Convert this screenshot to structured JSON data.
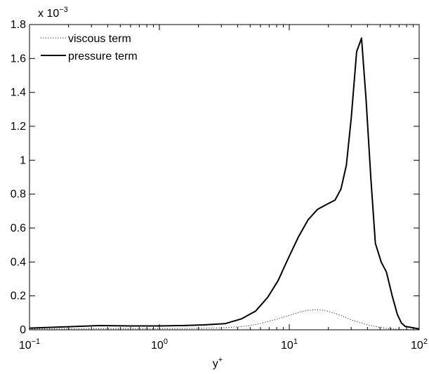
{
  "chart_data": {
    "type": "line",
    "title": "",
    "xlabel": "y",
    "xlabel_superscript": "+",
    "ylabel": "",
    "x_scale": "log",
    "xlim": [
      0.1,
      100
    ],
    "ylim": [
      0,
      0.0018
    ],
    "y_multiplier_label": {
      "base": "x 10",
      "exponent": "−3"
    },
    "x_ticks": [
      {
        "value": 0.1,
        "base": "10",
        "exp": "−1"
      },
      {
        "value": 1,
        "base": "10",
        "exp": "0"
      },
      {
        "value": 10,
        "base": "10",
        "exp": "1"
      },
      {
        "value": 100,
        "base": "10",
        "exp": "2"
      }
    ],
    "y_ticks": [
      {
        "value": 0,
        "label": "0"
      },
      {
        "value": 0.0002,
        "label": "0.2"
      },
      {
        "value": 0.0004,
        "label": "0.4"
      },
      {
        "value": 0.0006,
        "label": "0.6"
      },
      {
        "value": 0.0008,
        "label": "0.8"
      },
      {
        "value": 0.001,
        "label": "1"
      },
      {
        "value": 0.0012,
        "label": "1.2"
      },
      {
        "value": 0.0014,
        "label": "1.4"
      },
      {
        "value": 0.0016,
        "label": "1.6"
      },
      {
        "value": 0.0018,
        "label": "1.8"
      }
    ],
    "grid": false,
    "legend_position": "top-left",
    "series": [
      {
        "name": "viscous term",
        "style": "dotted",
        "color": "#000000",
        "x": [
          0.1,
          0.3,
          1,
          2,
          3,
          4,
          5,
          6,
          8,
          10,
          12,
          14,
          16,
          18,
          20,
          25,
          30,
          40,
          50,
          60,
          70,
          80,
          90,
          100
        ],
        "y": [
          5e-06,
          6e-06,
          7e-06,
          9e-06,
          1.2e-05,
          1.7e-05,
          2.5e-05,
          3.7e-05,
          6.2e-05,
          8.5e-05,
          0.000104,
          0.000115,
          0.000118,
          0.000116,
          0.000109,
          8.5e-05,
          5.8e-05,
          2.9e-05,
          1.4e-05,
          6e-06,
          3e-06,
          1.5e-06,
          8e-07,
          5e-07
        ]
      },
      {
        "name": "pressure term",
        "style": "solid",
        "color": "#000000",
        "x": [
          0.1,
          0.2,
          0.35,
          0.6,
          1,
          1.5,
          2.2,
          3.2,
          4.3,
          5.5,
          6.8,
          8.2,
          9.8,
          11.8,
          14.0,
          16.5,
          19.5,
          22.5,
          25.0,
          27.5,
          30.0,
          33.0,
          36.0,
          39.0,
          42.5,
          46.0,
          51.0,
          56.0,
          62.0,
          68.0,
          73.0,
          78.0,
          85.0,
          100
        ],
        "y": [
          1e-05,
          1.8e-05,
          2.5e-05,
          2.3e-05,
          2.3e-05,
          2.5e-05,
          2.9e-05,
          3.6e-05,
          6.5e-05,
          0.00011,
          0.00019,
          0.00029,
          0.00042,
          0.00055,
          0.00065,
          0.00071,
          0.00074,
          0.000765,
          0.00083,
          0.00097,
          0.00125,
          0.00164,
          0.00172,
          0.00136,
          0.00089,
          0.00051,
          0.0004,
          0.00034,
          0.0002,
          9e-05,
          4e-05,
          2e-05,
          1.5e-05,
          5e-06
        ]
      }
    ]
  }
}
